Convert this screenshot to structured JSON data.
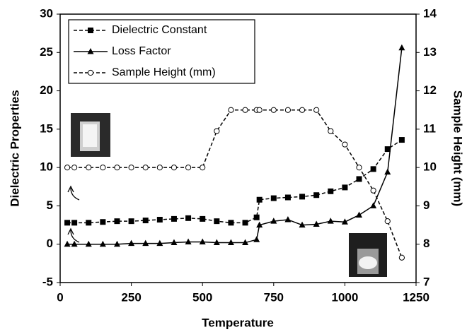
{
  "chart_data": {
    "type": "line",
    "x_label": "Temperature",
    "y_label": "Dielectric Properties",
    "y2_label": "Sample Height (mm)",
    "x": [
      25,
      50,
      100,
      150,
      200,
      250,
      300,
      350,
      400,
      450,
      500,
      550,
      600,
      650,
      690,
      700,
      750,
      800,
      850,
      900,
      950,
      1000,
      1050,
      1100,
      1150,
      1200
    ],
    "series": [
      {
        "name": "Dielectric Constant",
        "color": "#000000",
        "line_style": "dashed",
        "marker": "square",
        "values": [
          2.8,
          2.8,
          2.8,
          2.9,
          3.0,
          3.0,
          3.1,
          3.2,
          3.3,
          3.4,
          3.3,
          3.0,
          2.8,
          2.8,
          3.5,
          5.8,
          6.0,
          6.1,
          6.2,
          6.4,
          6.9,
          7.4,
          8.5,
          9.8,
          12.4,
          13.6
        ]
      },
      {
        "name": "Loss Factor",
        "color": "#000000",
        "line_style": "solid",
        "marker": "triangle",
        "values": [
          0,
          0,
          0,
          0,
          0,
          0.1,
          0.1,
          0.1,
          0.2,
          0.3,
          0.3,
          0.2,
          0.2,
          0.2,
          0.6,
          2.5,
          3.0,
          3.2,
          2.5,
          2.6,
          3.0,
          2.9,
          3.8,
          5.0,
          9.4,
          25.6
        ]
      },
      {
        "name": "Sample Height (mm)",
        "color": "#000000",
        "line_style": "dashed",
        "marker": "open-circle",
        "axis": "y2",
        "values": [
          10,
          10,
          10,
          10,
          10,
          10,
          10,
          10,
          10,
          10,
          10,
          10.95,
          11.5,
          11.5,
          11.5,
          11.5,
          11.5,
          11.5,
          11.5,
          11.5,
          10.95,
          10.6,
          10,
          9.4,
          8.6,
          7.65
        ]
      }
    ],
    "xlim": [
      0,
      1250
    ],
    "xticks": [
      0,
      250,
      500,
      750,
      1000,
      1250
    ],
    "ylim": [
      -5,
      30
    ],
    "yticks": [
      -5,
      0,
      5,
      10,
      15,
      20,
      25,
      30
    ],
    "y2lim": [
      7,
      14
    ],
    "y2ticks": [
      7,
      8,
      9,
      10,
      11,
      12,
      13,
      14
    ],
    "legend": "upper-left"
  }
}
